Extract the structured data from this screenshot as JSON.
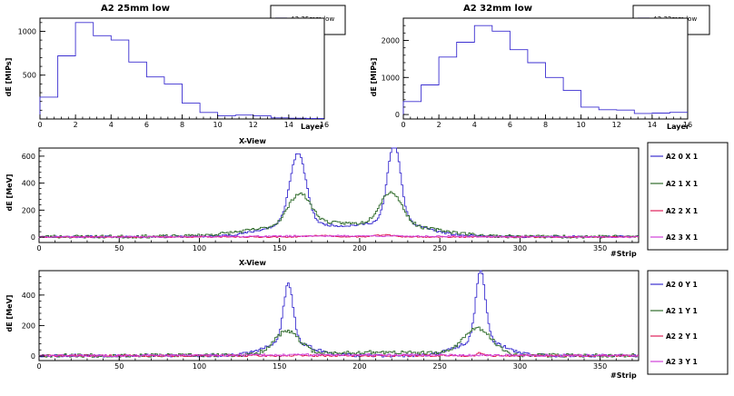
{
  "colors": {
    "blue": "#3b2fd0",
    "green": "#2f6b2a",
    "red": "#e0205a",
    "magenta": "#d040d8",
    "axis": "#000000"
  },
  "chart_data": [
    {
      "id": "p1",
      "type": "histogram",
      "title": "A2 25mm low",
      "xlabel": "Layer",
      "ylabel": "dE [MIPs]",
      "xlim": [
        0,
        16
      ],
      "ylim": [
        0,
        1150
      ],
      "xticks": [
        0,
        2,
        4,
        6,
        8,
        10,
        12,
        14,
        16
      ],
      "yticks": [
        500,
        1000
      ],
      "legend": [
        {
          "label": "A2 25mm low",
          "color": "blue"
        }
      ],
      "series": [
        {
          "name": "A2 25mm low",
          "color": "blue",
          "bins": [
            0,
            1,
            2,
            3,
            4,
            5,
            6,
            7,
            8,
            9,
            10,
            11,
            12,
            13,
            14,
            15,
            16
          ],
          "values": [
            250,
            720,
            1100,
            950,
            900,
            650,
            480,
            400,
            180,
            75,
            35,
            45,
            35,
            12,
            8,
            5
          ]
        }
      ]
    },
    {
      "id": "p2",
      "type": "histogram",
      "title": "A2 32mm low",
      "xlabel": "Layer",
      "ylabel": "dE [MIPs]",
      "xlim": [
        0,
        16
      ],
      "ylim": [
        -120,
        2600
      ],
      "xticks": [
        0,
        2,
        4,
        6,
        8,
        10,
        12,
        14,
        16
      ],
      "yticks": [
        0,
        1000,
        2000
      ],
      "legend": [
        {
          "label": "A2 32mm low",
          "color": "blue"
        }
      ],
      "series": [
        {
          "name": "A2 32mm low",
          "color": "blue",
          "bins": [
            0,
            1,
            2,
            3,
            4,
            5,
            6,
            7,
            8,
            9,
            10,
            11,
            12,
            13,
            14,
            15,
            16
          ],
          "values": [
            350,
            800,
            1550,
            1950,
            2400,
            2250,
            1750,
            1400,
            1000,
            650,
            200,
            130,
            120,
            30,
            40,
            60
          ]
        }
      ]
    },
    {
      "id": "p3",
      "type": "histogram",
      "title": "X-View",
      "xlabel": "#Strip",
      "ylabel": "dE [MeV]",
      "xlim": [
        0,
        374
      ],
      "ylim": [
        -40,
        660
      ],
      "xticks": [
        0,
        50,
        100,
        150,
        200,
        250,
        300,
        350
      ],
      "yticks": [
        0,
        200,
        400,
        600
      ],
      "legend": [
        {
          "label": "A2 0 X 1",
          "color": "blue"
        },
        {
          "label": "A2 1 X 1",
          "color": "green"
        },
        {
          "label": "A2 2 X 1",
          "color": "red"
        },
        {
          "label": "A2 3 X 1",
          "color": "magenta"
        }
      ],
      "series": [
        {
          "name": "A2 0 X 1",
          "color": "blue",
          "nbins": 374,
          "base": 3,
          "noise": 8,
          "seed": 11,
          "peaks": [
            [
              161,
              5,
              520
            ],
            [
              221,
              4,
              580
            ],
            [
              160,
              20,
              70
            ],
            [
              222,
              18,
              90
            ],
            [
              190,
              35,
              40
            ]
          ]
        },
        {
          "name": "A2 1 X 1",
          "color": "green",
          "nbins": 374,
          "base": 4,
          "noise": 12,
          "seed": 23,
          "peaks": [
            [
              162,
              7,
              230
            ],
            [
              219,
              7,
              250
            ],
            [
              190,
              30,
              90
            ],
            [
              145,
              25,
              40
            ],
            [
              240,
              20,
              40
            ]
          ]
        },
        {
          "name": "A2 2 X 1",
          "color": "red",
          "nbins": 374,
          "base": 1,
          "noise": 4,
          "seed": 37,
          "peaks": [
            [
              175,
              8,
              10
            ],
            [
              215,
              6,
              15
            ]
          ]
        },
        {
          "name": "A2 3 X 1",
          "color": "magenta",
          "nbins": 374,
          "base": 1,
          "noise": 5,
          "seed": 41,
          "peaks": [
            [
              190,
              60,
              8
            ]
          ]
        }
      ]
    },
    {
      "id": "p4",
      "type": "histogram",
      "title": "X-View",
      "xlabel": "#Strip",
      "ylabel": "dE [MeV]",
      "xlim": [
        0,
        374
      ],
      "ylim": [
        -30,
        560
      ],
      "xticks": [
        0,
        50,
        100,
        150,
        200,
        250,
        300,
        350
      ],
      "yticks": [
        0,
        200,
        400
      ],
      "legend": [
        {
          "label": "A2 0 Y 1",
          "color": "blue"
        },
        {
          "label": "A2 1 Y 1",
          "color": "green"
        },
        {
          "label": "A2 2 Y 1",
          "color": "red"
        },
        {
          "label": "A2 3 Y 1",
          "color": "magenta"
        }
      ],
      "series": [
        {
          "name": "A2 0 Y 1",
          "color": "blue",
          "nbins": 374,
          "base": 3,
          "noise": 10,
          "seed": 53,
          "peaks": [
            [
              155,
              3,
              380
            ],
            [
              275,
              3,
              460
            ],
            [
              155,
              14,
              90
            ],
            [
              275,
              14,
              100
            ]
          ]
        },
        {
          "name": "A2 1 Y 1",
          "color": "green",
          "nbins": 374,
          "base": 4,
          "noise": 12,
          "seed": 67,
          "peaks": [
            [
              154,
              8,
              150
            ],
            [
              273,
              9,
              170
            ],
            [
              210,
              40,
              20
            ]
          ]
        },
        {
          "name": "A2 2 Y 1",
          "color": "red",
          "nbins": 374,
          "base": 2,
          "noise": 6,
          "seed": 71,
          "peaks": [
            [
              275,
              2,
              20
            ]
          ]
        },
        {
          "name": "A2 3 Y 1",
          "color": "magenta",
          "nbins": 374,
          "base": 2,
          "noise": 7,
          "seed": 83,
          "peaks": [
            [
              200,
              80,
              6
            ]
          ]
        }
      ]
    }
  ]
}
